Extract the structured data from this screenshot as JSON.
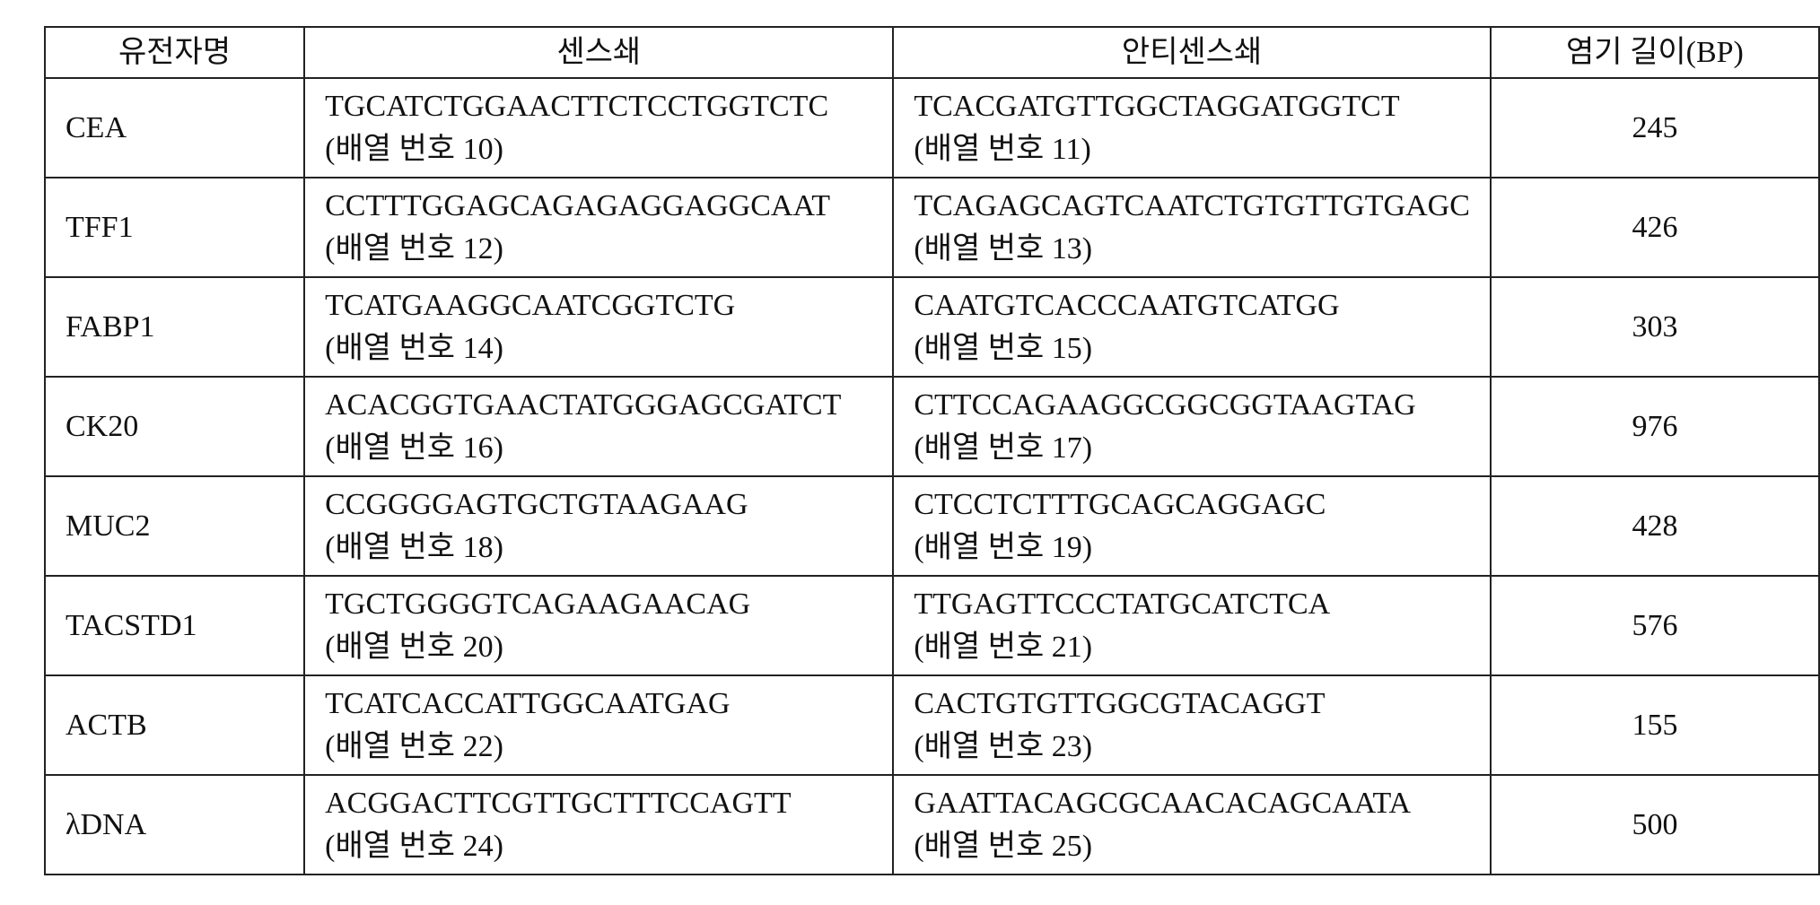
{
  "table": {
    "header": [
      "유전자명",
      "센스쇄",
      "안티센스쇄",
      "염기 길이(BP)"
    ],
    "rows": [
      {
        "gene": "CEA",
        "sense": "TGCATCTGGAACTTCTCCTGGTCTC",
        "sense_id": "(배열 번호 10)",
        "antisense": "TCACGATGTTGGCTAGGATGGTCT",
        "antisense_id": "(배열 번호 11)",
        "length": 245
      },
      {
        "gene": "TFF1",
        "sense": "CCTTTGGAGCAGAGAGGAGGCAAT",
        "sense_id": "(배열 번호 12)",
        "antisense": "TCAGAGCAGTCAATCTGTGTTGTGAGC",
        "antisense_id": "(배열 번호 13)",
        "length": 426
      },
      {
        "gene": "FABP1",
        "sense": "TCATGAAGGCAATCGGTCTG",
        "sense_id": "(배열 번호 14)",
        "antisense": "CAATGTCACCCAATGTCATGG",
        "antisense_id": "(배열 번호 15)",
        "length": 303
      },
      {
        "gene": "CK20",
        "sense": "ACACGGTGAACTATGGGAGCGATCT",
        "sense_id": "(배열 번호 16)",
        "antisense": "CTTCCAGAAGGCGGCGGTAAGTAG",
        "antisense_id": "(배열 번호 17)",
        "length": 976
      },
      {
        "gene": "MUC2",
        "sense": "CCGGGGAGTGCTGTAAGAAG",
        "sense_id": "(배열 번호 18)",
        "antisense": "CTCCTCTTTGCAGCAGGAGC",
        "antisense_id": "(배열 번호 19)",
        "length": 428
      },
      {
        "gene": "TACSTD1",
        "sense": "TGCTGGGGTCAGAAGAACAG",
        "sense_id": "(배열 번호 20)",
        "antisense": "TTGAGTTCCCTATGCATCTCA",
        "antisense_id": "(배열 번호 21)",
        "length": 576
      },
      {
        "gene": "ACTB",
        "sense": "TCATCACCATTGGCAATGAG",
        "sense_id": "(배열 번호 22)",
        "antisense": "CACTGTGTTGGCGTACAGGT",
        "antisense_id": "(배열 번호 23)",
        "length": 155
      },
      {
        "gene": "λDNA",
        "sense": "ACGGACTTCGTTGCTTTCCAGTT",
        "sense_id": "(배열 번호 24)",
        "antisense": "GAATTACAGCGCAACACAGCAATA",
        "antisense_id": "(배열 번호 25)",
        "length": 500
      }
    ]
  }
}
